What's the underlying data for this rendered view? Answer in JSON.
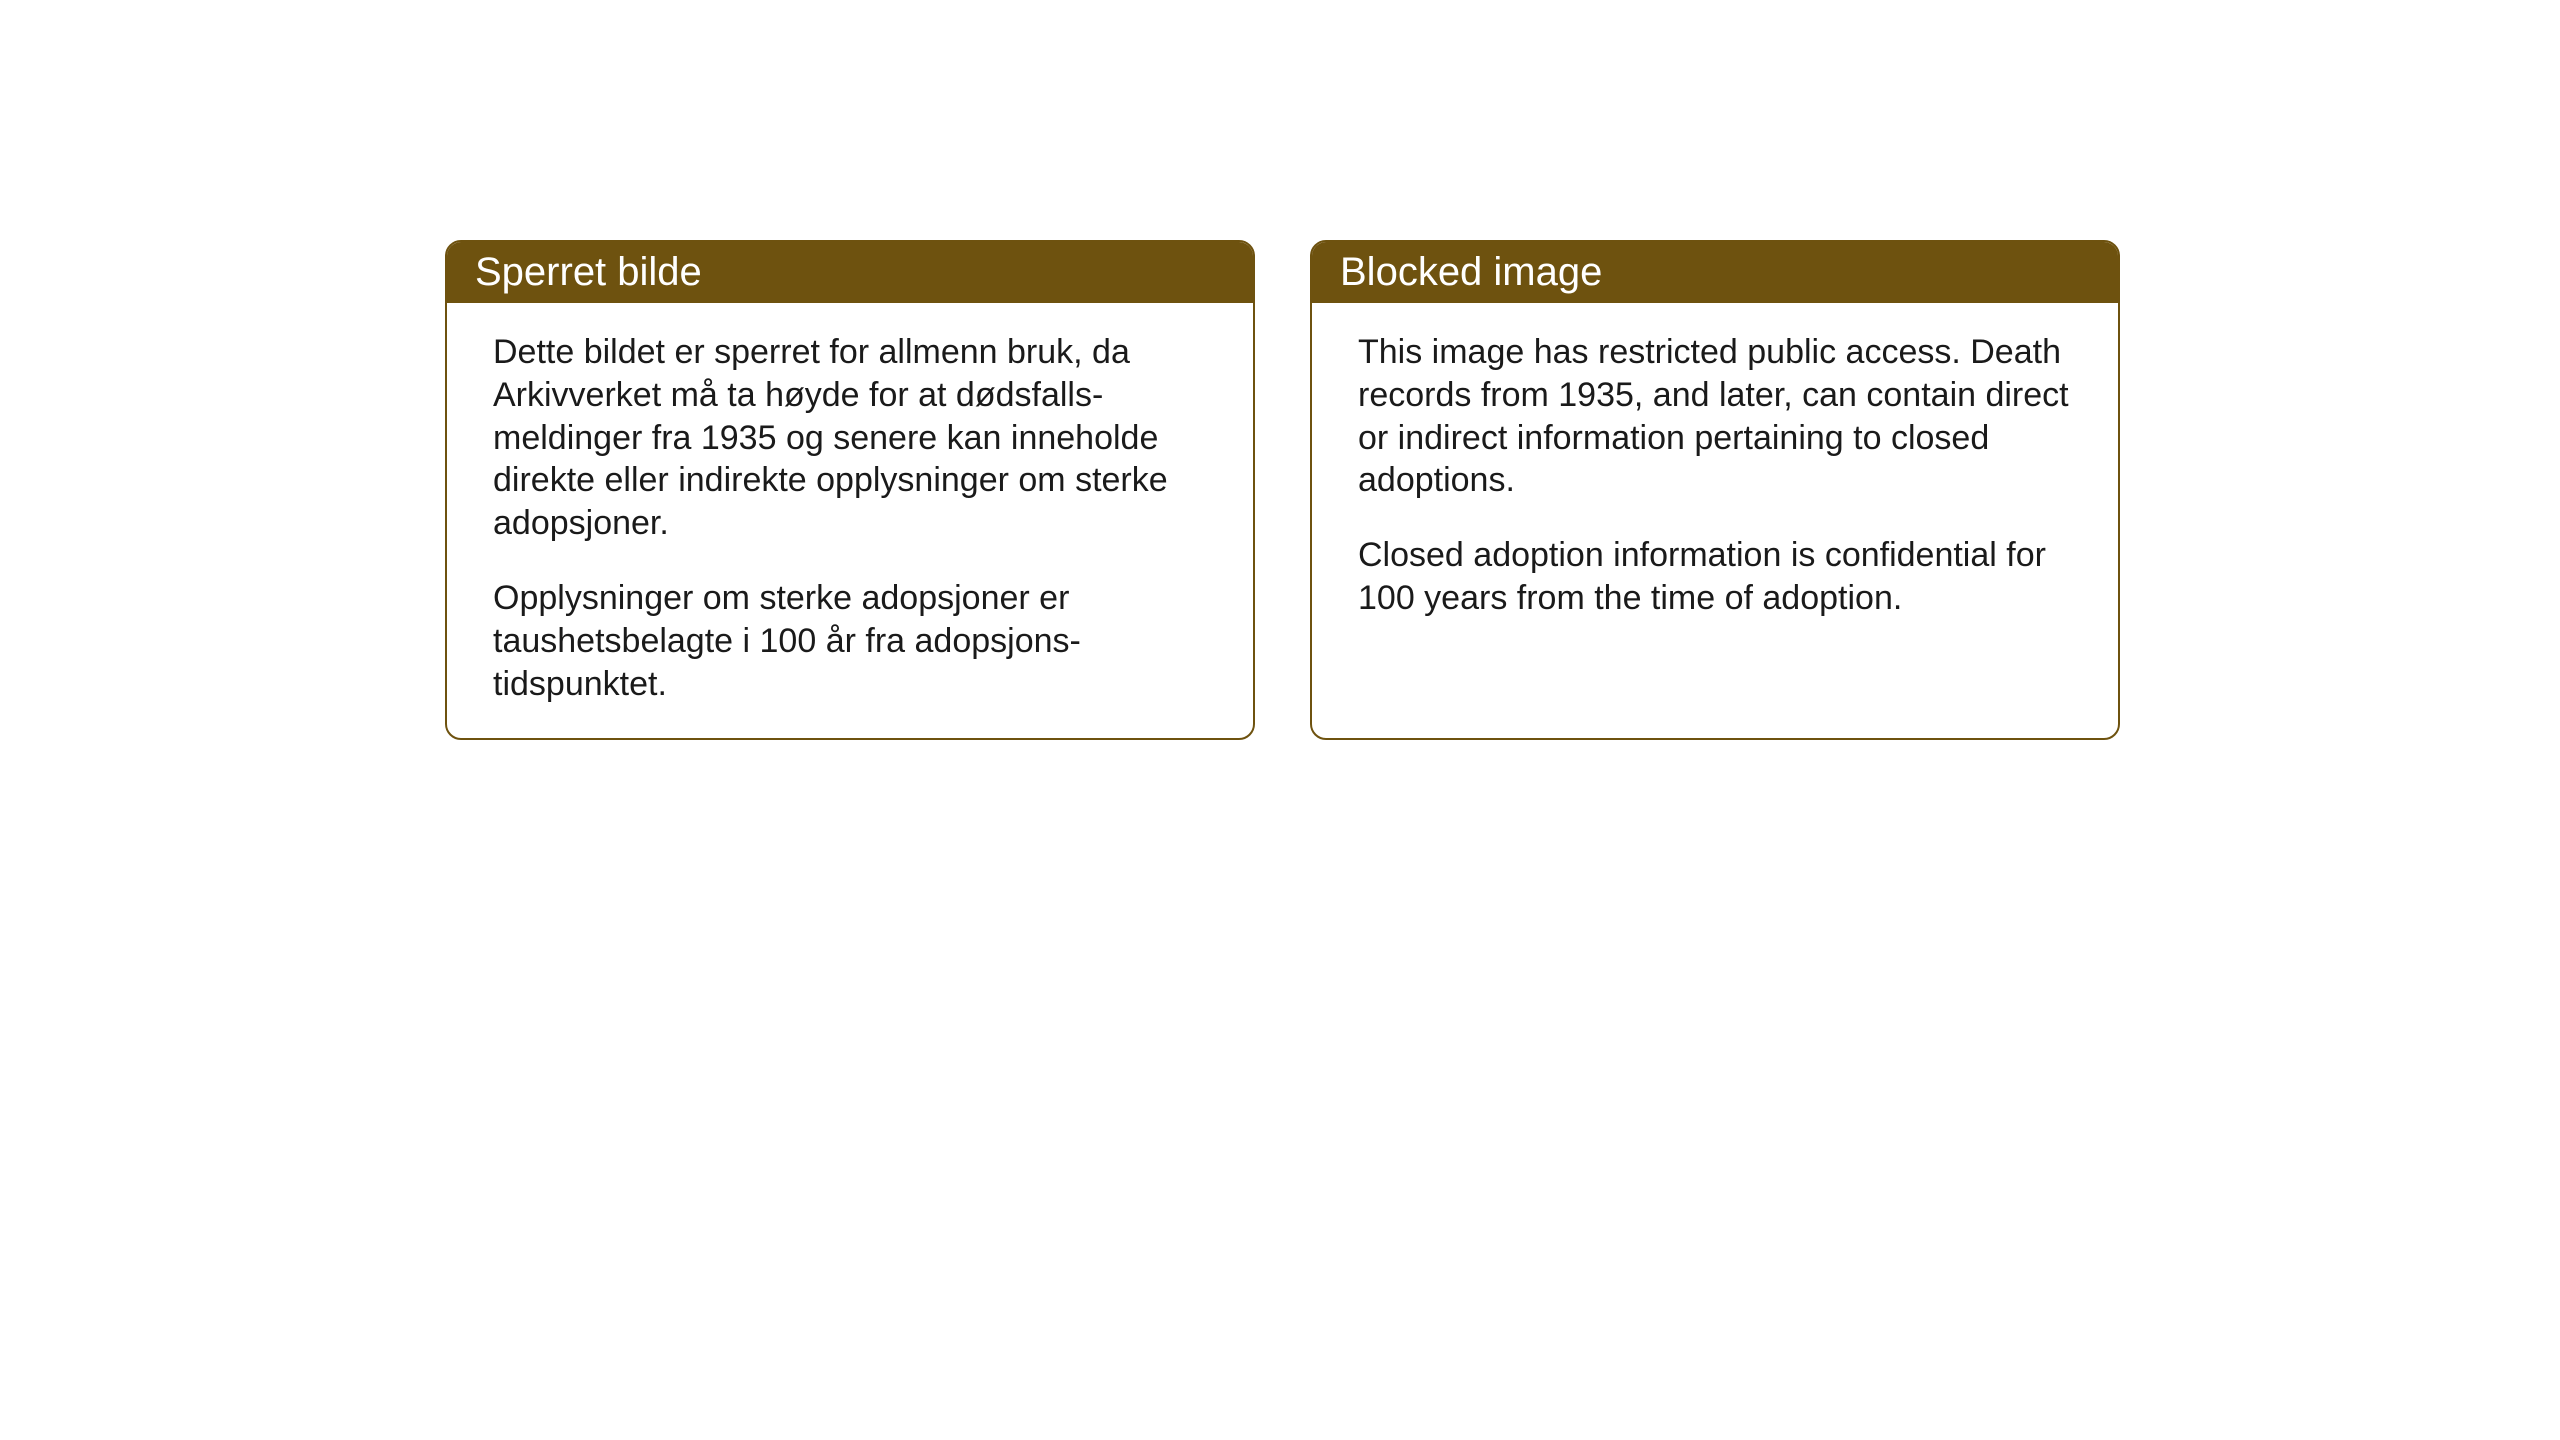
{
  "layout": {
    "background_color": "#ffffff",
    "box_border_color": "#6e520f",
    "box_header_bg": "#6e520f",
    "box_header_text_color": "#ffffff",
    "body_text_color": "#1a1a1a",
    "border_radius": 16,
    "border_width": 2,
    "header_fontsize": 40,
    "body_fontsize": 34
  },
  "boxes": {
    "left": {
      "title": "Sperret bilde",
      "para1": "Dette bildet er sperret for allmenn bruk, da Arkivverket må ta høyde for at dødsfalls-meldinger fra 1935 og senere kan inneholde direkte eller indirekte opplysninger om sterke adopsjoner.",
      "para2": "Opplysninger om sterke adopsjoner er taushetsbelagte i 100 år fra adopsjons-tidspunktet."
    },
    "right": {
      "title": "Blocked image",
      "para1": "This image has restricted public access. Death records from 1935, and later, can contain direct or indirect information pertaining to closed adoptions.",
      "para2": "Closed adoption information is confidential for 100 years from the time of adoption."
    }
  }
}
